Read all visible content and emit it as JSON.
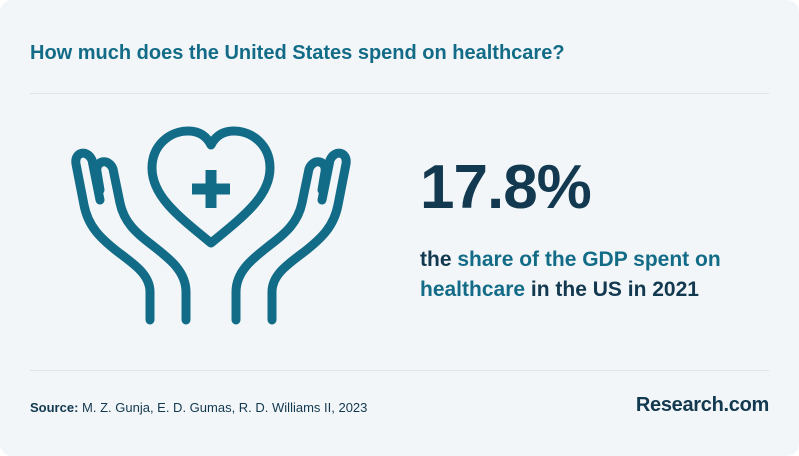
{
  "header": {
    "title": "How much does the United States spend on healthcare?"
  },
  "stat": {
    "value": "17.8%",
    "desc_prefix": "the",
    "desc_highlight_1": "share of the GDP spent on",
    "desc_highlight_2": "healthcare",
    "desc_suffix": "in the US in 2021"
  },
  "footer": {
    "source_label": "Source:",
    "source_text": "M. Z. Gunja, E. D. Gumas, R. D. Williams II, 2023",
    "brand": "Research.com"
  },
  "icons": {
    "illustration": "hands-holding-heart-cross-icon"
  },
  "colors": {
    "accent": "#136c87",
    "dark": "#12394f",
    "background": "#f3f6f8"
  }
}
